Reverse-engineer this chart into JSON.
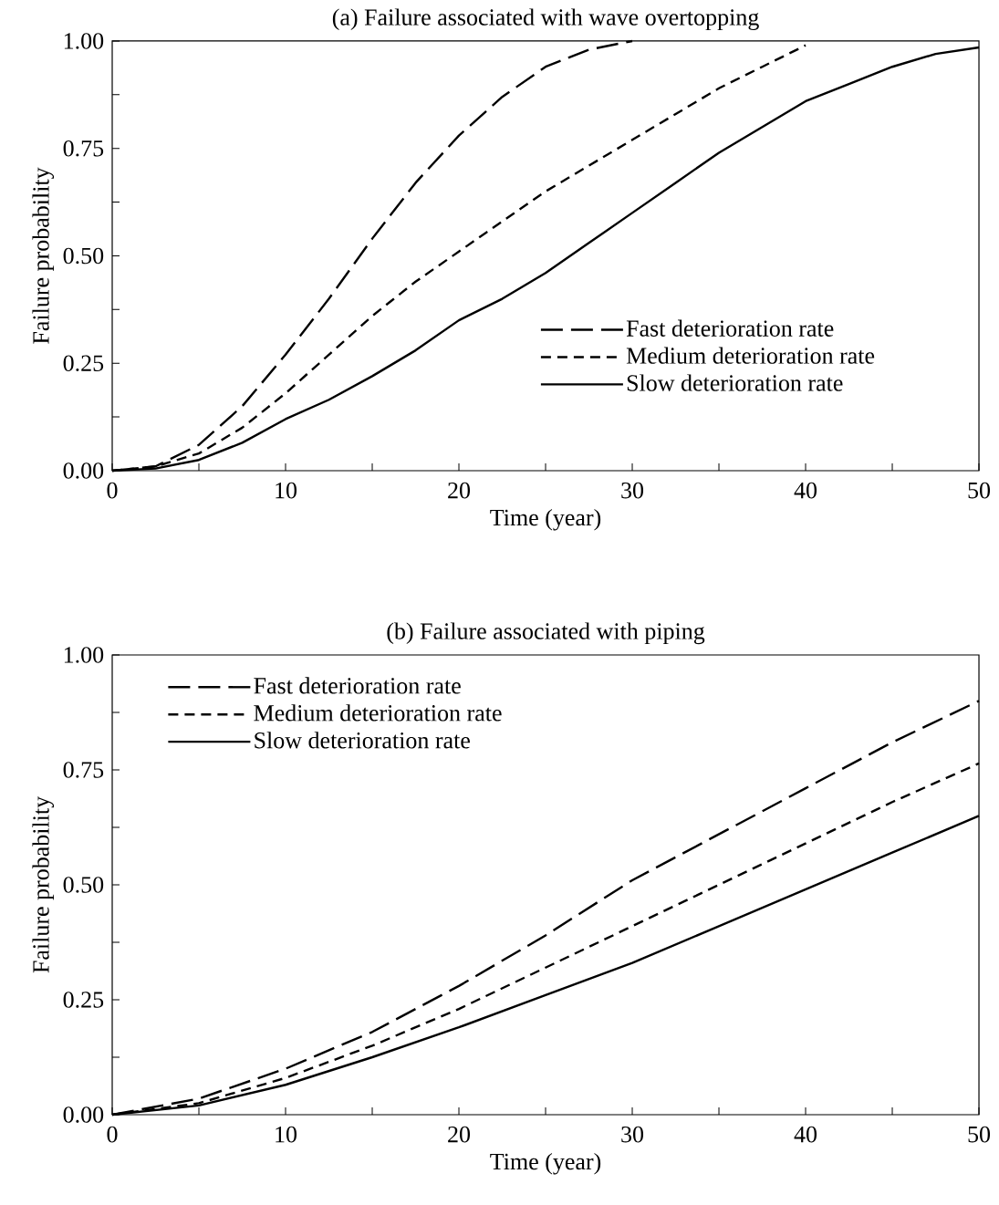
{
  "chart_data": [
    {
      "type": "line",
      "title": "(a) Failure associated with wave overtopping",
      "xlabel": "Time (year)",
      "ylabel": "Failure probability",
      "xlim": [
        0,
        50
      ],
      "ylim": [
        0,
        1
      ],
      "xticks": [
        0,
        {
          "value": 5,
          "label": null
        },
        10,
        {
          "value": 15,
          "label": null
        },
        20,
        {
          "value": 25,
          "label": null
        },
        30,
        {
          "value": 35,
          "label": null
        },
        40,
        {
          "value": 45,
          "label": null
        },
        50
      ],
      "yticks": [
        {
          "value": 0,
          "label": "0.00"
        },
        {
          "value": 0.125,
          "label": null
        },
        {
          "value": 0.25,
          "label": "0.25"
        },
        {
          "value": 0.375,
          "label": null
        },
        {
          "value": 0.5,
          "label": "0.50"
        },
        {
          "value": 0.625,
          "label": null
        },
        {
          "value": 0.75,
          "label": "0.75"
        },
        {
          "value": 0.875,
          "label": null
        },
        {
          "value": 1,
          "label": "1.00"
        }
      ],
      "legend": "bottom right",
      "series": [
        {
          "name": "Fast deterioration rate",
          "color": "#000000",
          "line_style": "dashed",
          "x": [
            0,
            2.5,
            5,
            7.5,
            10,
            12.5,
            15,
            17.5,
            20,
            22.5,
            25,
            27.5,
            30
          ],
          "values": [
            0,
            0.01,
            0.06,
            0.15,
            0.27,
            0.4,
            0.54,
            0.67,
            0.78,
            0.87,
            0.94,
            0.98,
            1.0
          ]
        },
        {
          "name": "Medium deterioration rate",
          "color": "#000000",
          "line_style": "dashed",
          "x": [
            0,
            2.5,
            5,
            7.5,
            10,
            12.5,
            15,
            17.5,
            20,
            22.5,
            25,
            27.5,
            30,
            32.5,
            35,
            37.5,
            40
          ],
          "values": [
            0,
            0.01,
            0.04,
            0.1,
            0.18,
            0.27,
            0.36,
            0.44,
            0.51,
            0.58,
            0.65,
            0.71,
            0.77,
            0.83,
            0.89,
            0.94,
            0.99
          ]
        },
        {
          "name": "Slow deterioration rate",
          "color": "#000000",
          "line_style": "solid",
          "x": [
            0,
            2.5,
            5,
            7.5,
            10,
            12.5,
            15,
            17.5,
            20,
            22.5,
            25,
            27.5,
            30,
            32.5,
            35,
            37.5,
            40,
            42.5,
            45,
            47.5,
            50
          ],
          "values": [
            0,
            0.005,
            0.025,
            0.065,
            0.12,
            0.165,
            0.22,
            0.28,
            0.35,
            0.4,
            0.46,
            0.53,
            0.6,
            0.67,
            0.74,
            0.8,
            0.86,
            0.9,
            0.94,
            0.97,
            0.985
          ]
        }
      ]
    },
    {
      "type": "line",
      "title": "(b) Failure associated with piping",
      "xlabel": "Time (year)",
      "ylabel": "Failure probability",
      "xlim": [
        0,
        50
      ],
      "ylim": [
        0,
        1
      ],
      "xticks": [
        0,
        {
          "value": 5,
          "label": null
        },
        10,
        {
          "value": 15,
          "label": null
        },
        20,
        {
          "value": 25,
          "label": null
        },
        30,
        {
          "value": 35,
          "label": null
        },
        40,
        {
          "value": 45,
          "label": null
        },
        50
      ],
      "yticks": [
        {
          "value": 0,
          "label": "0.00"
        },
        {
          "value": 0.125,
          "label": null
        },
        {
          "value": 0.25,
          "label": "0.25"
        },
        {
          "value": 0.375,
          "label": null
        },
        {
          "value": 0.5,
          "label": "0.50"
        },
        {
          "value": 0.625,
          "label": null
        },
        {
          "value": 0.75,
          "label": "0.75"
        },
        {
          "value": 0.875,
          "label": null
        },
        {
          "value": 1,
          "label": "1.00"
        }
      ],
      "legend": "top left",
      "series": [
        {
          "name": "Fast deterioration rate",
          "color": "#000000",
          "line_style": "dashed",
          "x": [
            0,
            5,
            10,
            15,
            20,
            25,
            30,
            35,
            40,
            45,
            50
          ],
          "values": [
            0,
            0.035,
            0.1,
            0.18,
            0.28,
            0.39,
            0.51,
            0.61,
            0.71,
            0.81,
            0.9
          ]
        },
        {
          "name": "Medium deterioration rate",
          "color": "#000000",
          "line_style": "dashed",
          "x": [
            0,
            5,
            10,
            15,
            20,
            25,
            30,
            35,
            40,
            45,
            50
          ],
          "values": [
            0,
            0.025,
            0.08,
            0.15,
            0.23,
            0.32,
            0.41,
            0.5,
            0.59,
            0.68,
            0.764
          ]
        },
        {
          "name": "Slow deterioration rate",
          "color": "#000000",
          "line_style": "solid",
          "x": [
            0,
            5,
            10,
            15,
            20,
            25,
            30,
            35,
            40,
            45,
            50
          ],
          "values": [
            0,
            0.02,
            0.065,
            0.125,
            0.19,
            0.26,
            0.33,
            0.41,
            0.49,
            0.57,
            0.65
          ]
        }
      ]
    }
  ]
}
